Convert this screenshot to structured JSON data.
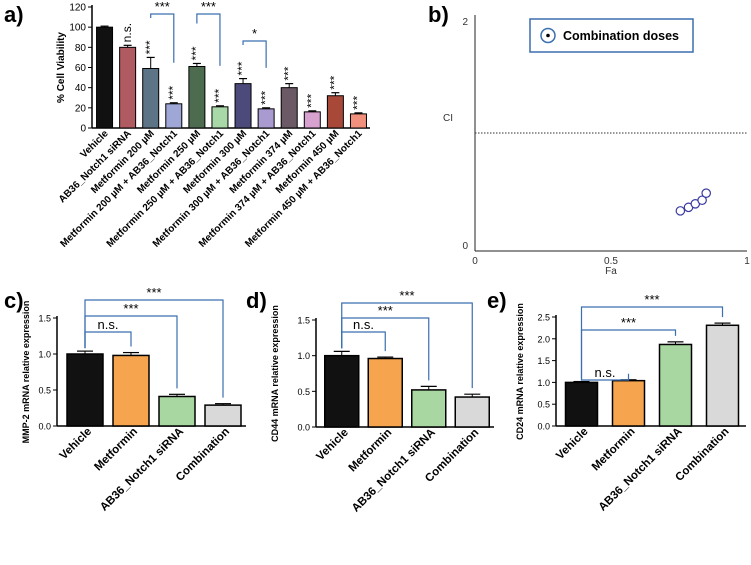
{
  "chart_data": [
    {
      "panel": "a)",
      "type": "bar",
      "ylabel": "% Cell Viability",
      "ylim": [
        0,
        120
      ],
      "yticks": [
        0,
        20,
        40,
        60,
        80,
        100,
        120
      ],
      "categories": [
        "Vehicle",
        "AB36_Notch1 siRNA",
        "Metformin 200 µM",
        "Metformin 200 µM + AB36_Notch1",
        "Metformin 250 µM",
        "Metformin 250 µM + AB36_Notch1",
        "Metformin 300 µM",
        "Metformin 300 µM + AB36_Notch1",
        "Metformin 374 µM",
        "Metformin 374 µM + AB36_Notch1",
        "Metformin 450 µM",
        "Metformin 450 µM + AB36_Notch1"
      ],
      "values": [
        100,
        80,
        59,
        24,
        61,
        21,
        44,
        19,
        40,
        16,
        32,
        14
      ],
      "errors": [
        1,
        2,
        11,
        1,
        3,
        1,
        5,
        1,
        4,
        1,
        3,
        1
      ],
      "colors": [
        "#111111",
        "#b05a61",
        "#5c7486",
        "#9fa7d6",
        "#4d6b4f",
        "#a8d8a8",
        "#4c4a7a",
        "#a99ad0",
        "#6b5a66",
        "#d7a2cf",
        "#a84838",
        "#f1917d"
      ],
      "labels": [
        "",
        "n.s.",
        "***",
        "***",
        "***",
        "***",
        "***",
        "***",
        "***",
        "***",
        "***",
        "***"
      ],
      "brackets": [
        {
          "from": 2,
          "to": 3,
          "label": "***"
        },
        {
          "from": 4,
          "to": 5,
          "label": "***"
        },
        {
          "from": 6,
          "to": 7,
          "label": "*"
        }
      ]
    },
    {
      "panel": "b)",
      "type": "scatter",
      "xlabel": "Fa",
      "ylabel": "CI",
      "xlim": [
        0,
        1
      ],
      "ylim": [
        0,
        2
      ],
      "xticks": [
        "0",
        "0.5",
        "1"
      ],
      "yticks": [
        "0",
        "2"
      ],
      "reference_line": 1,
      "legend": "Combination doses",
      "points": [
        {
          "x": 0.755,
          "y": 0.34
        },
        {
          "x": 0.785,
          "y": 0.37
        },
        {
          "x": 0.81,
          "y": 0.4
        },
        {
          "x": 0.835,
          "y": 0.43
        },
        {
          "x": 0.85,
          "y": 0.49
        }
      ]
    },
    {
      "panel": "c)",
      "type": "bar",
      "ylabel": "MMP-2 mRNA relative expression",
      "ylim": [
        0,
        1.5
      ],
      "yticks": [
        "0.0",
        "0.5",
        "1.0",
        "1.5"
      ],
      "categories": [
        "Vehicle",
        "Metformin",
        "AB36_Notch1  siRNA",
        "Combination"
      ],
      "values": [
        1.0,
        0.98,
        0.41,
        0.29
      ],
      "errors": [
        0.04,
        0.04,
        0.03,
        0.02
      ],
      "colors": [
        "#111111",
        "#f6a54e",
        "#a9d7a1",
        "#d9d9d9"
      ],
      "brackets": [
        {
          "from": 0,
          "to": 1,
          "label": "n.s."
        },
        {
          "from": 0,
          "to": 2,
          "label": "***"
        },
        {
          "from": 0,
          "to": 3,
          "label": "***"
        }
      ]
    },
    {
      "panel": "d)",
      "type": "bar",
      "ylabel": "CD44 mRNA relative expression",
      "ylim": [
        0,
        1.5
      ],
      "yticks": [
        "0.0",
        "0.5",
        "1.0",
        "1.5"
      ],
      "categories": [
        "Vehicle",
        "Metformin",
        "AB36_Notch1 siRNA",
        "Combination"
      ],
      "values": [
        1.0,
        0.96,
        0.52,
        0.42
      ],
      "errors": [
        0.06,
        0.02,
        0.05,
        0.04
      ],
      "colors": [
        "#111111",
        "#f6a54e",
        "#a9d7a1",
        "#d9d9d9"
      ],
      "brackets": [
        {
          "from": 0,
          "to": 1,
          "label": "n.s."
        },
        {
          "from": 0,
          "to": 2,
          "label": "***"
        },
        {
          "from": 0,
          "to": 3,
          "label": "***"
        }
      ]
    },
    {
      "panel": "e)",
      "type": "bar",
      "ylabel": "CD24 mRNA relative expression",
      "ylim": [
        0,
        2.5
      ],
      "yticks": [
        "0.0",
        "0.5",
        "1.0",
        "1.5",
        "2.0",
        "2.5"
      ],
      "categories": [
        "Vehicle",
        "Metformin",
        "AB36_Notch1 siRNA",
        "Combination"
      ],
      "values": [
        1.0,
        1.04,
        1.87,
        2.31
      ],
      "errors": [
        0.02,
        0.02,
        0.06,
        0.05
      ],
      "colors": [
        "#111111",
        "#f6a54e",
        "#a9d7a1",
        "#d9d9d9"
      ],
      "brackets": [
        {
          "from": 0,
          "to": 1,
          "label": "n.s."
        },
        {
          "from": 0,
          "to": 2,
          "label": "***"
        },
        {
          "from": 0,
          "to": 3,
          "label": "***"
        }
      ]
    }
  ]
}
